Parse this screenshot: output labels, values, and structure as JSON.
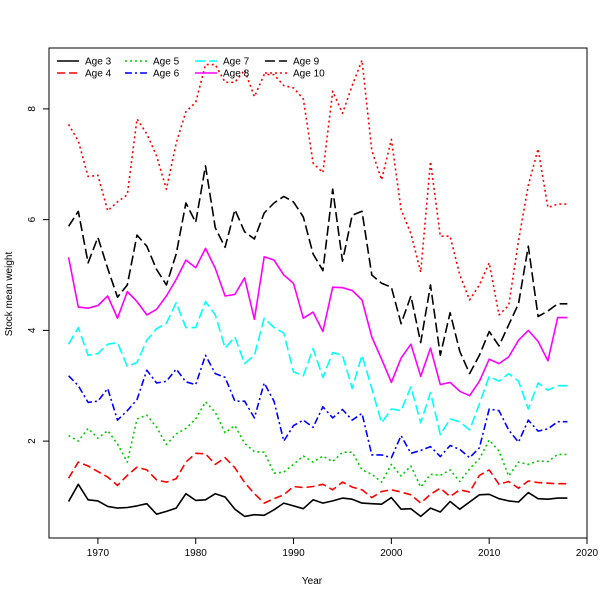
{
  "chart_data": {
    "type": "line",
    "xlabel": "Year",
    "ylabel": "Stock mean weight",
    "xlim": [
      1965,
      2020
    ],
    "ylim": [
      0.25,
      9.1
    ],
    "x_ticks": [
      1970,
      1980,
      1990,
      2000,
      2010,
      2020
    ],
    "y_ticks": [
      2,
      4,
      6,
      8
    ],
    "legend_position": "top-left",
    "grid": false,
    "x": [
      1967,
      1968,
      1969,
      1970,
      1971,
      1972,
      1973,
      1974,
      1975,
      1976,
      1977,
      1978,
      1979,
      1980,
      1981,
      1982,
      1983,
      1984,
      1985,
      1986,
      1987,
      1988,
      1989,
      1990,
      1991,
      1992,
      1993,
      1994,
      1995,
      1996,
      1997,
      1998,
      1999,
      2000,
      2001,
      2002,
      2003,
      2004,
      2005,
      2006,
      2007,
      2008,
      2009,
      2010,
      2011,
      2012,
      2013,
      2014,
      2015,
      2016,
      2017,
      2018
    ],
    "series": [
      {
        "name": "Age 3",
        "color": "#000000",
        "dash": "solid",
        "values": [
          0.91,
          1.22,
          0.94,
          0.92,
          0.82,
          0.79,
          0.8,
          0.83,
          0.87,
          0.68,
          0.73,
          0.79,
          1.05,
          0.93,
          0.94,
          1.05,
          0.99,
          0.77,
          0.64,
          0.67,
          0.66,
          0.76,
          0.88,
          0.83,
          0.78,
          0.94,
          0.88,
          0.92,
          0.97,
          0.95,
          0.88,
          0.87,
          0.86,
          0.98,
          0.77,
          0.78,
          0.64,
          0.79,
          0.72,
          0.91,
          0.77,
          0.9,
          1.03,
          1.04,
          0.96,
          0.92,
          0.9,
          1.07,
          0.96,
          0.95,
          0.97,
          0.97
        ]
      },
      {
        "name": "Age 4",
        "color": "#ff0000",
        "dash": "dashed",
        "values": [
          1.33,
          1.62,
          1.55,
          1.45,
          1.35,
          1.2,
          1.38,
          1.53,
          1.48,
          1.3,
          1.26,
          1.32,
          1.62,
          1.78,
          1.77,
          1.58,
          1.7,
          1.52,
          1.25,
          1.05,
          0.88,
          0.96,
          1.03,
          1.18,
          1.16,
          1.18,
          1.22,
          1.12,
          1.26,
          1.17,
          1.12,
          0.98,
          1.09,
          1.12,
          1.08,
          1.03,
          0.88,
          1.04,
          1.15,
          1.0,
          1.12,
          1.08,
          1.38,
          1.48,
          1.22,
          1.27,
          1.15,
          1.28,
          1.25,
          1.24,
          1.23,
          1.23
        ]
      },
      {
        "name": "Age 5",
        "color": "#00cd00",
        "dash": "dotted",
        "values": [
          2.1,
          2.0,
          2.23,
          2.05,
          2.19,
          1.95,
          1.62,
          2.4,
          2.47,
          2.25,
          1.94,
          2.13,
          2.23,
          2.4,
          2.71,
          2.52,
          2.15,
          2.28,
          1.96,
          1.81,
          1.8,
          1.42,
          1.44,
          1.58,
          1.73,
          1.62,
          1.73,
          1.63,
          1.8,
          1.8,
          1.48,
          1.4,
          1.26,
          1.58,
          1.37,
          1.55,
          1.17,
          1.4,
          1.38,
          1.48,
          1.27,
          1.5,
          1.68,
          2.02,
          1.82,
          1.37,
          1.62,
          1.58,
          1.64,
          1.63,
          1.76,
          1.76
        ]
      },
      {
        "name": "Age 6",
        "color": "#0000ff",
        "dash": "dashdot",
        "values": [
          3.18,
          3.0,
          2.7,
          2.72,
          2.95,
          2.38,
          2.55,
          2.75,
          3.28,
          3.05,
          3.08,
          3.3,
          3.07,
          3.02,
          3.55,
          3.22,
          3.15,
          2.72,
          2.72,
          2.42,
          3.05,
          2.72,
          2.0,
          2.28,
          2.38,
          2.25,
          2.62,
          2.42,
          2.57,
          2.38,
          2.5,
          1.75,
          1.75,
          1.7,
          2.1,
          1.78,
          1.83,
          1.9,
          1.72,
          1.92,
          1.85,
          1.7,
          1.88,
          2.58,
          2.55,
          2.2,
          1.98,
          2.38,
          2.18,
          2.22,
          2.35,
          2.35
        ]
      },
      {
        "name": "Age 7",
        "color": "#00ffff",
        "dash": "longdash",
        "values": [
          3.75,
          4.05,
          3.55,
          3.58,
          3.75,
          3.78,
          3.35,
          3.42,
          3.82,
          4.03,
          4.13,
          4.5,
          4.05,
          4.05,
          4.52,
          4.28,
          3.68,
          3.88,
          3.4,
          3.55,
          4.22,
          4.05,
          3.95,
          3.25,
          3.18,
          3.67,
          3.15,
          3.6,
          3.55,
          2.95,
          3.55,
          2.95,
          2.33,
          2.58,
          2.55,
          2.98,
          2.33,
          2.88,
          2.12,
          2.4,
          2.35,
          2.2,
          2.67,
          3.17,
          3.08,
          3.22,
          3.08,
          2.58,
          3.05,
          2.92,
          3.0,
          3.0
        ]
      },
      {
        "name": "Age 8",
        "color": "#ff00ff",
        "dash": "solid",
        "values": [
          5.32,
          4.42,
          4.4,
          4.45,
          4.62,
          4.22,
          4.7,
          4.52,
          4.28,
          4.38,
          4.62,
          4.92,
          5.27,
          5.13,
          5.48,
          5.12,
          4.62,
          4.65,
          4.95,
          4.2,
          5.33,
          5.27,
          5.0,
          4.85,
          4.22,
          4.33,
          3.98,
          4.78,
          4.77,
          4.72,
          4.55,
          3.88,
          3.48,
          3.06,
          3.5,
          3.75,
          3.17,
          3.68,
          3.02,
          3.06,
          2.9,
          2.82,
          3.08,
          3.48,
          3.4,
          3.52,
          3.82,
          4.0,
          3.8,
          3.45,
          4.23,
          4.23
        ]
      },
      {
        "name": "Age 9",
        "color": "#000000",
        "dash": "longdash",
        "values": [
          5.88,
          6.15,
          5.22,
          5.68,
          5.12,
          4.6,
          4.82,
          5.72,
          5.52,
          5.1,
          4.82,
          5.38,
          6.3,
          5.95,
          6.97,
          5.85,
          5.5,
          6.18,
          5.78,
          5.65,
          6.12,
          6.3,
          6.42,
          6.32,
          6.05,
          5.38,
          5.08,
          6.55,
          5.25,
          6.08,
          6.15,
          5.0,
          4.85,
          4.78,
          4.12,
          4.62,
          3.78,
          4.82,
          3.55,
          4.32,
          3.62,
          3.22,
          3.55,
          3.98,
          3.72,
          4.1,
          4.48,
          5.52,
          4.25,
          4.35,
          4.48,
          4.48
        ]
      },
      {
        "name": "Age 10",
        "color": "#ff0000",
        "dash": "dotted",
        "values": [
          7.72,
          7.42,
          6.78,
          6.8,
          6.16,
          6.32,
          6.45,
          7.82,
          7.55,
          7.15,
          6.55,
          7.38,
          7.95,
          8.12,
          8.8,
          8.8,
          8.48,
          8.48,
          8.7,
          8.22,
          8.62,
          8.62,
          8.42,
          8.38,
          8.18,
          7.02,
          6.85,
          8.32,
          7.92,
          8.42,
          8.88,
          7.25,
          6.72,
          7.45,
          6.18,
          5.75,
          5.05,
          7.05,
          5.7,
          5.7,
          5.0,
          4.55,
          4.82,
          5.22,
          4.28,
          4.45,
          5.62,
          6.62,
          7.28,
          6.22,
          6.28,
          6.28
        ]
      }
    ]
  }
}
